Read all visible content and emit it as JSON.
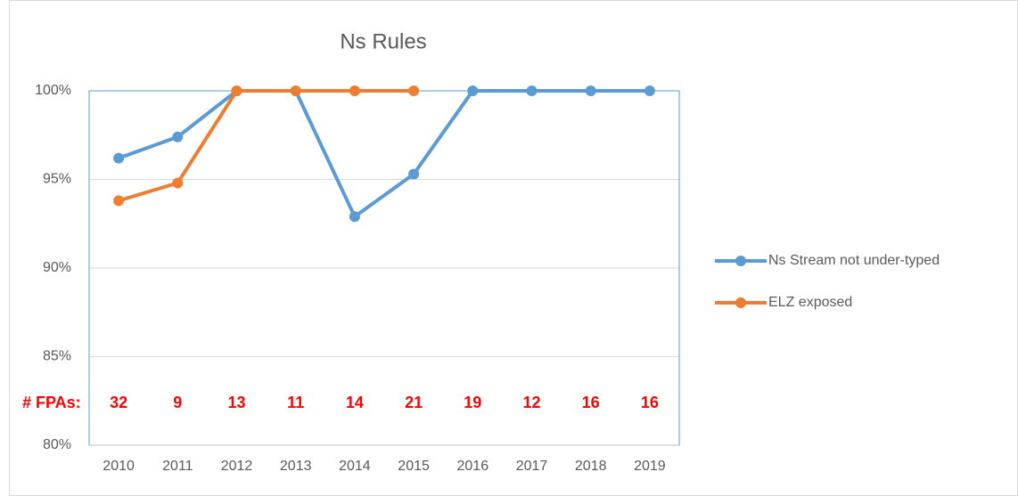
{
  "chart_data": {
    "type": "line",
    "title": "Ns Rules",
    "categories": [
      "2010",
      "2011",
      "2012",
      "2013",
      "2014",
      "2015",
      "2016",
      "2017",
      "2018",
      "2019"
    ],
    "series": [
      {
        "name": "Ns Stream not under-typed",
        "color": "#5b9bd5",
        "values": [
          96.2,
          97.4,
          100,
          100,
          92.9,
          95.3,
          100,
          100,
          100,
          100
        ]
      },
      {
        "name": "ELZ exposed",
        "color": "#ed7d31",
        "values": [
          93.8,
          94.8,
          100,
          100,
          100,
          100,
          null,
          null,
          null,
          null
        ]
      }
    ],
    "ylim": [
      80,
      100
    ],
    "yticks": [
      {
        "value": 80,
        "label": "80%"
      },
      {
        "value": 85,
        "label": "85%"
      },
      {
        "value": 90,
        "label": "90%"
      },
      {
        "value": 95,
        "label": "95%"
      },
      {
        "value": 100,
        "label": "100%"
      }
    ],
    "grid": true,
    "legend": "right",
    "annotations": {
      "label": "# FPAs:",
      "counts": [
        32,
        9,
        13,
        11,
        14,
        21,
        19,
        12,
        16,
        16
      ]
    }
  }
}
